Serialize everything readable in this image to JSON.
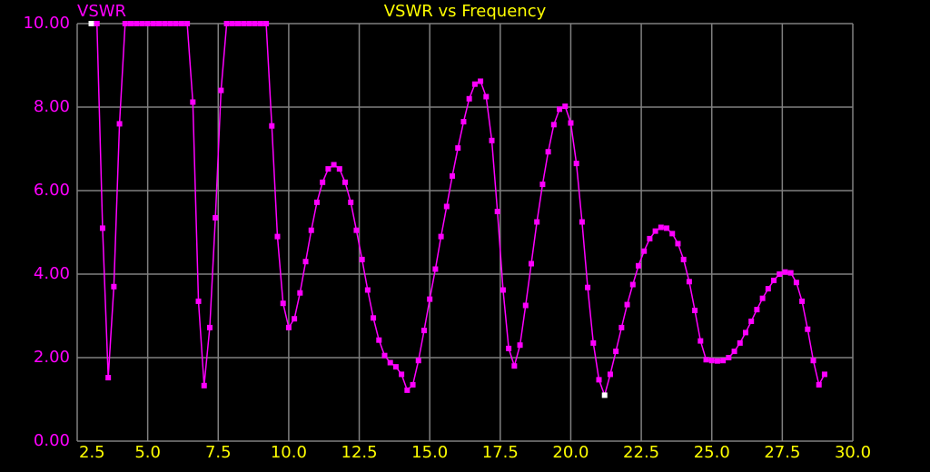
{
  "chart_data": {
    "type": "line",
    "title": "VSWR vs Frequency",
    "ylabel": "VSWR",
    "x": [
      3.0,
      3.2,
      3.4,
      3.6,
      3.8,
      4.0,
      4.2,
      4.4,
      4.6,
      4.8,
      5.0,
      5.2,
      5.4,
      5.6,
      5.8,
      6.0,
      6.2,
      6.4,
      6.6,
      6.8,
      7.0,
      7.2,
      7.4,
      7.6,
      7.8,
      8.0,
      8.2,
      8.4,
      8.6,
      8.8,
      9.0,
      9.2,
      9.4,
      9.6,
      9.8,
      10.0,
      10.2,
      10.4,
      10.6,
      10.8,
      11.0,
      11.2,
      11.4,
      11.6,
      11.8,
      12.0,
      12.2,
      12.4,
      12.6,
      12.8,
      13.0,
      13.2,
      13.4,
      13.6,
      13.8,
      14.0,
      14.2,
      14.4,
      14.6,
      14.8,
      15.0,
      15.2,
      15.4,
      15.6,
      15.8,
      16.0,
      16.2,
      16.4,
      16.6,
      16.8,
      17.0,
      17.2,
      17.4,
      17.6,
      17.8,
      18.0,
      18.2,
      18.4,
      18.6,
      18.8,
      19.0,
      19.2,
      19.4,
      19.6,
      19.8,
      20.0,
      20.2,
      20.4,
      20.6,
      20.8,
      21.0,
      21.2,
      21.4,
      21.6,
      21.8,
      22.0,
      22.2,
      22.4,
      22.6,
      22.8,
      23.0,
      23.2,
      23.4,
      23.6,
      23.8,
      24.0,
      24.2,
      24.4,
      24.6,
      24.8,
      25.0,
      25.2,
      25.4,
      25.6,
      25.8,
      26.0,
      26.2,
      26.4,
      26.6,
      26.8,
      27.0,
      27.2,
      27.4,
      27.6,
      27.8,
      28.0,
      28.2,
      28.4,
      28.6,
      28.8,
      29.0
    ],
    "values": [
      10,
      10,
      5.1,
      1.52,
      3.7,
      7.6,
      10,
      10,
      10,
      10,
      10,
      10,
      10,
      10,
      10,
      10,
      10,
      10,
      8.12,
      3.35,
      1.33,
      2.72,
      5.35,
      8.4,
      10,
      10,
      10,
      10,
      10,
      10,
      10,
      10,
      7.55,
      4.9,
      3.3,
      2.72,
      2.93,
      3.55,
      4.3,
      5.05,
      5.72,
      6.2,
      6.52,
      6.62,
      6.52,
      6.2,
      5.72,
      5.05,
      4.35,
      3.62,
      2.95,
      2.42,
      2.05,
      1.88,
      1.78,
      1.6,
      1.22,
      1.35,
      1.93,
      2.65,
      3.4,
      4.12,
      4.9,
      5.62,
      6.35,
      7.02,
      7.65,
      8.2,
      8.55,
      8.62,
      8.25,
      7.2,
      5.5,
      3.62,
      2.22,
      1.8,
      2.3,
      3.25,
      4.25,
      5.25,
      6.15,
      6.93,
      7.58,
      7.95,
      8.02,
      7.62,
      6.65,
      5.25,
      3.68,
      2.35,
      1.47,
      1.1,
      1.6,
      2.15,
      2.72,
      3.27,
      3.75,
      4.2,
      4.55,
      4.85,
      5.03,
      5.12,
      5.1,
      4.97,
      4.73,
      4.35,
      3.82,
      3.13,
      2.4,
      1.95,
      1.93,
      1.92,
      1.93,
      2.0,
      2.15,
      2.35,
      2.6,
      2.87,
      3.15,
      3.42,
      3.65,
      3.85,
      4.0,
      4.05,
      4.03,
      3.8,
      3.35,
      2.68,
      1.93,
      1.35,
      1.6
    ],
    "color": "#ff00ff",
    "highlight": {
      "color": "#ffffff",
      "x": [
        3.0,
        21.2
      ]
    },
    "xlim": [
      2.5,
      30
    ],
    "xticks": [
      2.5,
      {
        "value": 5,
        "label": "5.0"
      },
      7.5,
      {
        "value": 10,
        "label": "10.0"
      },
      12.5,
      {
        "value": 15,
        "label": "15.0"
      },
      17.5,
      {
        "value": 20,
        "label": "20.0"
      },
      22.5,
      {
        "value": 25,
        "label": "25.0"
      },
      27.5,
      {
        "value": 30,
        "label": "30.0"
      }
    ],
    "ylim": [
      0,
      10
    ],
    "yticks": [
      {
        "value": 0,
        "label": "0.00"
      },
      {
        "value": 2,
        "label": "2.00"
      },
      {
        "value": 4,
        "label": "4.00"
      },
      {
        "value": 6,
        "label": "6.00"
      },
      {
        "value": 8,
        "label": "8.00"
      },
      {
        "value": 10,
        "label": "10.00"
      }
    ],
    "grid": true
  }
}
